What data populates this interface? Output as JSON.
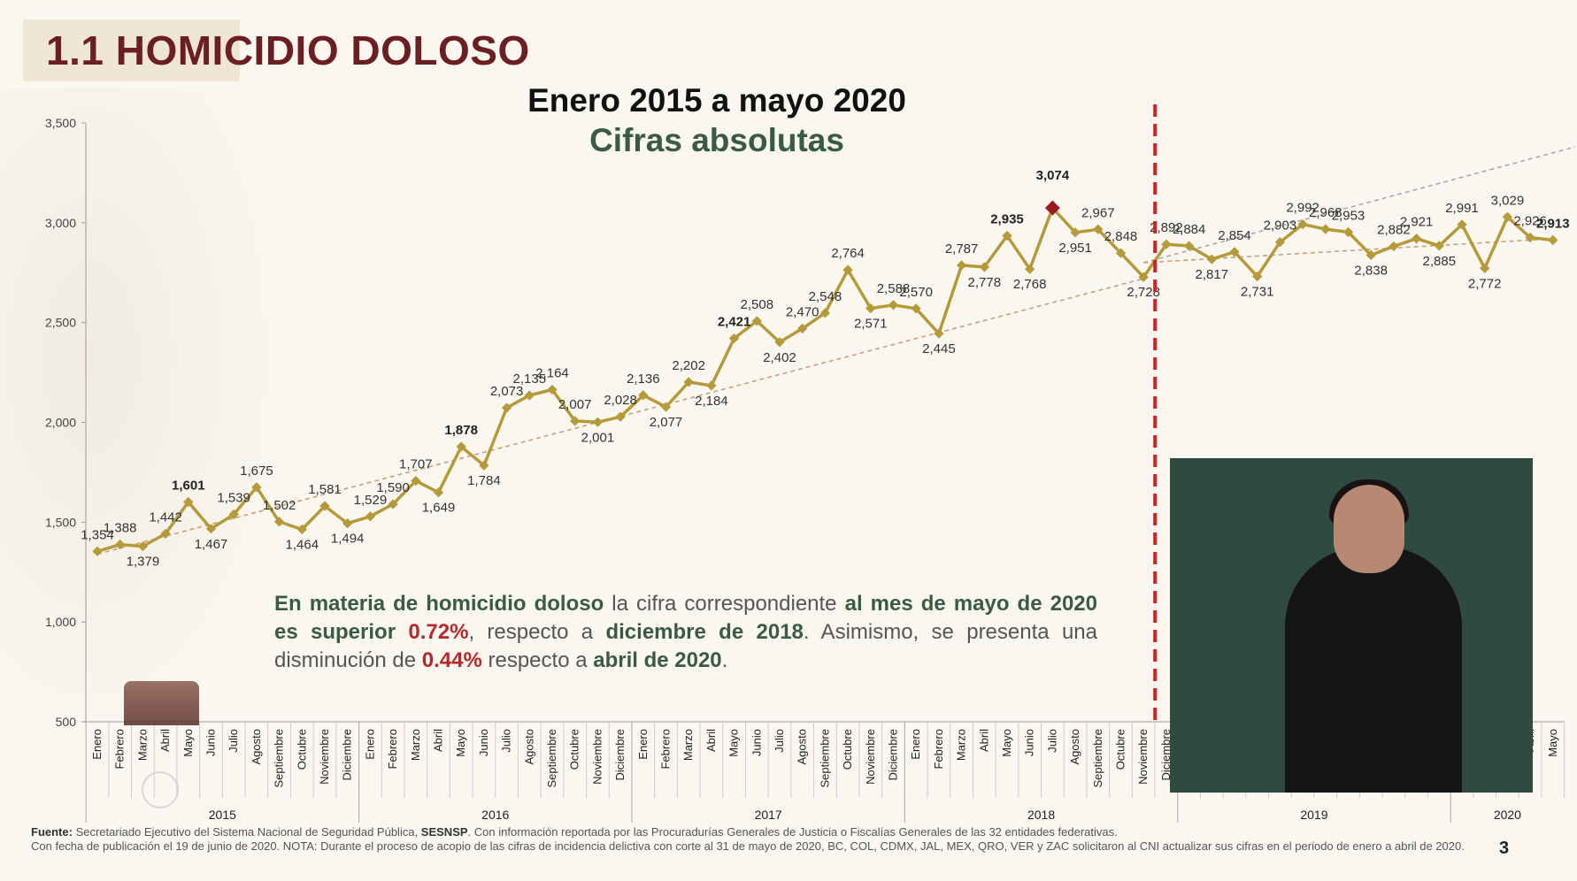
{
  "header": {
    "title": "1.1 HOMICIDIO DOLOSO"
  },
  "chart_title": "Enero 2015 a mayo 2020",
  "chart_subtitle": "Cifras absolutas",
  "chart_data": {
    "type": "line",
    "ylim": [
      500,
      3500
    ],
    "yticks": [
      "500",
      "1,000",
      "1,500",
      "2,000",
      "2,500",
      "3,000",
      "3,500"
    ],
    "grid": false,
    "line_color": "#b59a3a",
    "trend_color": "#c9a07a",
    "peak_marker_color": "#9b1c22",
    "divider_color": "#d11f26",
    "months": [
      "Enero",
      "Febrero",
      "Marzo",
      "Abril",
      "Mayo",
      "Junio",
      "Julio",
      "Agosto",
      "Septiembre",
      "Octubre",
      "Noviembre",
      "Diciembre"
    ],
    "years": [
      "2015",
      "2016",
      "2017",
      "2018",
      "2019",
      "2020"
    ],
    "divider_after_index": 46,
    "labels": [
      "1,354",
      "1,388",
      "1,379",
      "1,442",
      "1,601",
      "1,467",
      "1,539",
      "1,675",
      "1,502",
      "1,464",
      "1,581",
      "1,494",
      "1,529",
      "1,590",
      "1,707",
      "1,649",
      "1,878",
      "1,784",
      "2,073",
      "2,135",
      "2,164",
      "2,007",
      "2,001",
      "2,028",
      "2,136",
      "2,077",
      "2,202",
      "2,184",
      "2,421",
      "2,508",
      "2,402",
      "2,470",
      "2,548",
      "2,764",
      "2,571",
      "2,588",
      "2,570",
      "2,445",
      "2,787",
      "2,778",
      "2,935",
      "2,768",
      "3,074",
      "2,951",
      "2,967",
      "2,848",
      "2,728",
      "2,892",
      "2,884",
      "2,817",
      "2,854",
      "2,731",
      "2,903",
      "2,992",
      "2,968",
      "2,953",
      "2,838",
      "2,882",
      "2,921",
      "2,885",
      "2,991",
      "2,772",
      "3,029",
      "2,926",
      "2,913"
    ],
    "values": [
      1354,
      1388,
      1379,
      1442,
      1601,
      1467,
      1539,
      1675,
      1502,
      1464,
      1581,
      1494,
      1529,
      1590,
      1707,
      1649,
      1878,
      1784,
      2073,
      2135,
      2164,
      2007,
      2001,
      2028,
      2136,
      2077,
      2202,
      2184,
      2421,
      2508,
      2402,
      2470,
      2548,
      2764,
      2571,
      2588,
      2570,
      2445,
      2787,
      2778,
      2935,
      2768,
      3074,
      2951,
      2967,
      2848,
      2728,
      2892,
      2884,
      2817,
      2854,
      2731,
      2903,
      2992,
      2968,
      2953,
      2838,
      2882,
      2921,
      2885,
      2991,
      2772,
      3029,
      2926,
      2913
    ]
  },
  "summary": {
    "p1": "En materia de homicidio doloso",
    "p2": " la cifra correspondiente ",
    "p3": "al mes de mayo de 2020 es superior",
    "p4": "0.72%",
    "p5": ", respecto a ",
    "p6": "diciembre de 2018",
    "p7": ". Asimismo, se presenta una disminución de ",
    "p8": "0.44%",
    "p9": " respecto a ",
    "p10": "abril de 2020",
    "p11": "."
  },
  "footer": {
    "source_label": "Fuente:",
    "source_text": " Secretariado Ejecutivo del Sistema Nacional de Seguridad Pública, ",
    "source_acr": "SESNSP",
    "source_rest": ". Con información reportada por las Procuradurías Generales de Justicia o Fiscalías Generales de las 32 entidades federativas.",
    "note": "Con fecha de publicación el 19 de junio de 2020. NOTA: Durante el proceso de acopio de las cifras de incidencia delictiva con corte al 31 de mayo de 2020, BC, COL, CDMX, JAL, MEX, QRO, VER y ZAC solicitaron al CNI actualizar sus cifras en el periodo de enero a abril de 2020."
  },
  "page_number": "3"
}
